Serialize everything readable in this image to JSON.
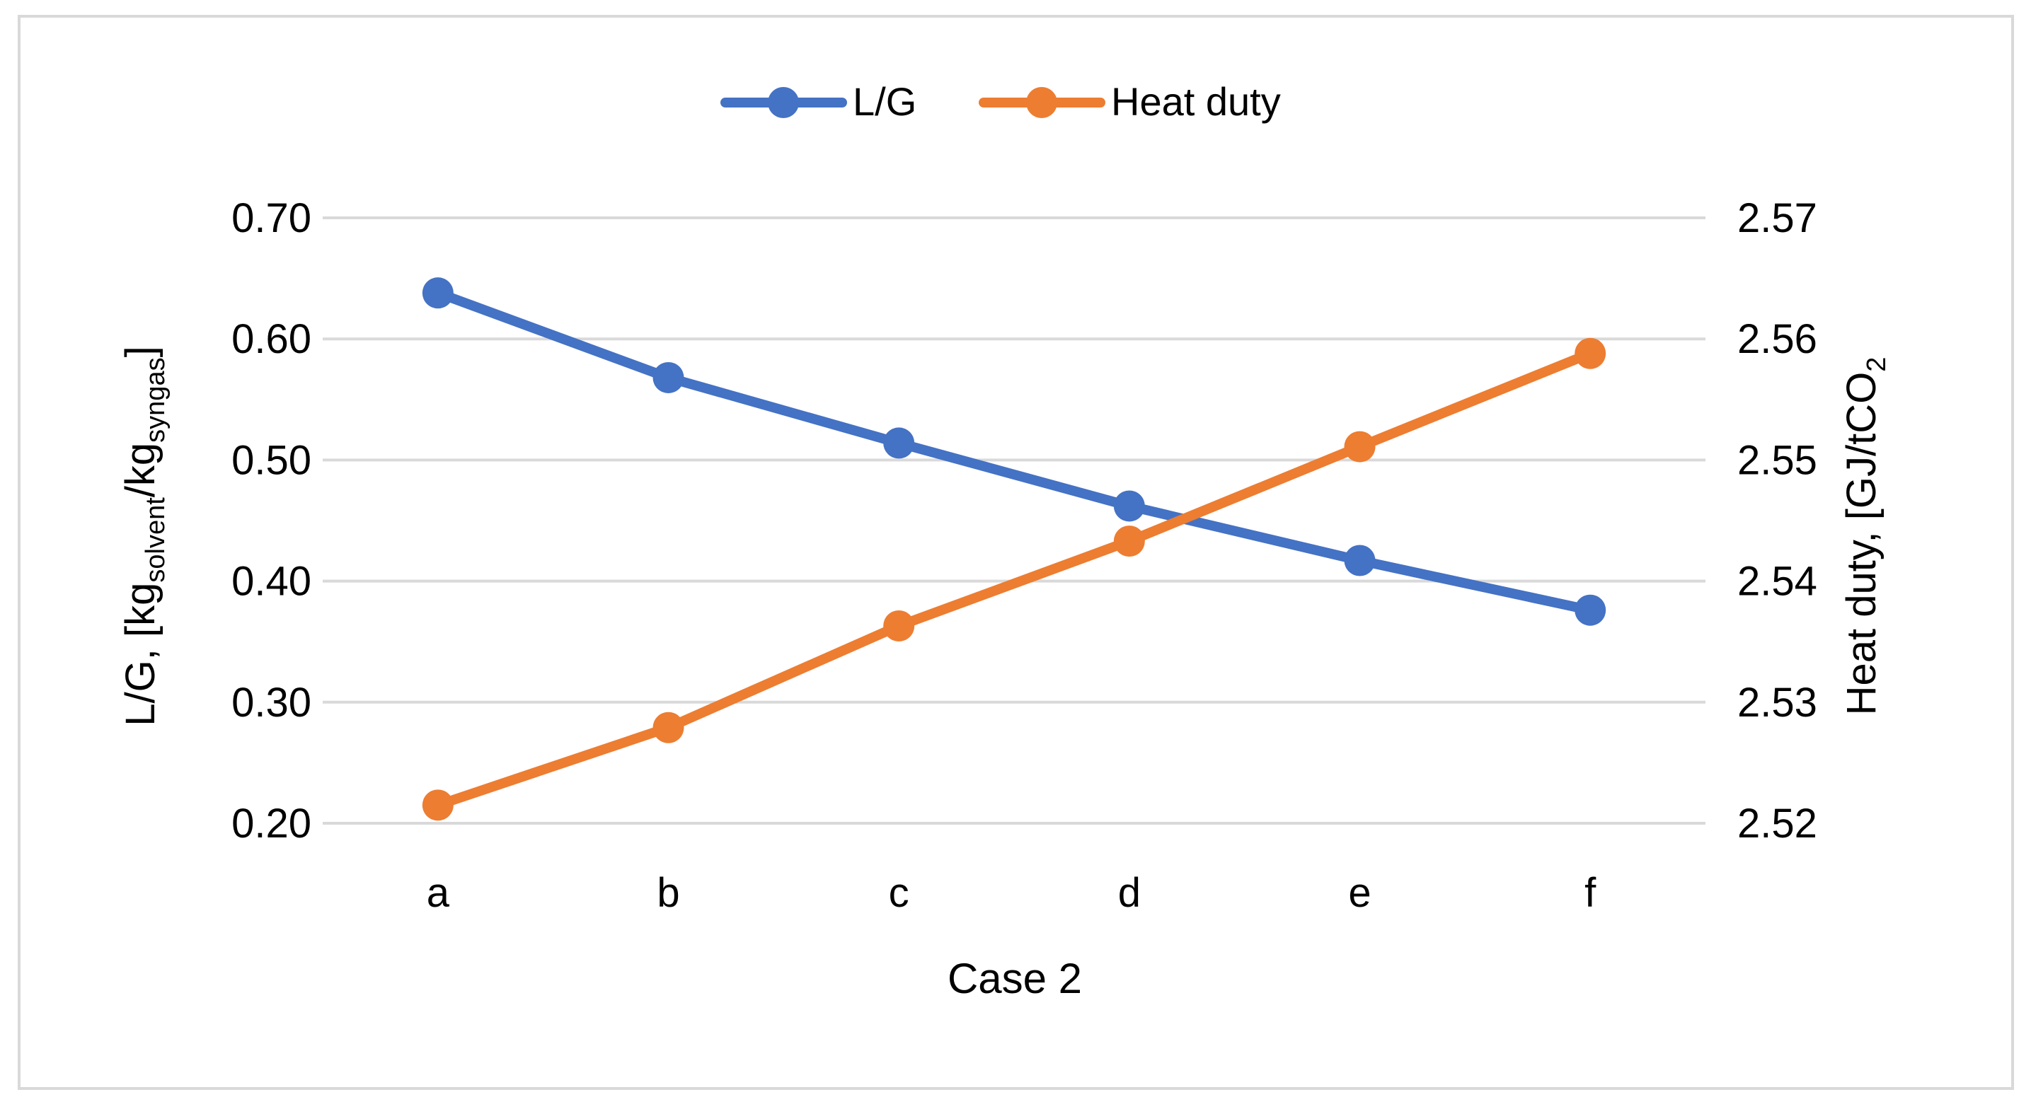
{
  "chart_data": {
    "type": "line",
    "x_title": "Case 2",
    "categories": [
      "a",
      "b",
      "c",
      "d",
      "e",
      "f"
    ],
    "y_left": {
      "label_main": "L/G, [kg",
      "label_sub1": "solvent",
      "label_mid": "/kg",
      "label_sub2": "syngas",
      "label_end": "]",
      "ylim": [
        0.2,
        0.7
      ],
      "ticks": [
        "0.20",
        "0.30",
        "0.40",
        "0.50",
        "0.60",
        "0.70"
      ]
    },
    "y_right": {
      "label_main": "Heat duty, [GJ/tCO",
      "label_sub": "2",
      "ylim": [
        2.52,
        2.57
      ],
      "ticks": [
        "2.52",
        "2.53",
        "2.54",
        "2.55",
        "2.56",
        "2.57"
      ]
    },
    "series": [
      {
        "name": "L/G",
        "axis": "left",
        "color": "#4472C4",
        "values": [
          0.638,
          0.568,
          0.514,
          0.462,
          0.417,
          0.376
        ]
      },
      {
        "name": "Heat duty",
        "axis": "right",
        "color": "#ED7D31",
        "values": [
          2.5215,
          2.5279,
          2.5363,
          2.5433,
          2.5511,
          2.5588
        ]
      }
    ],
    "legend_position": "top-center",
    "grid": true
  }
}
